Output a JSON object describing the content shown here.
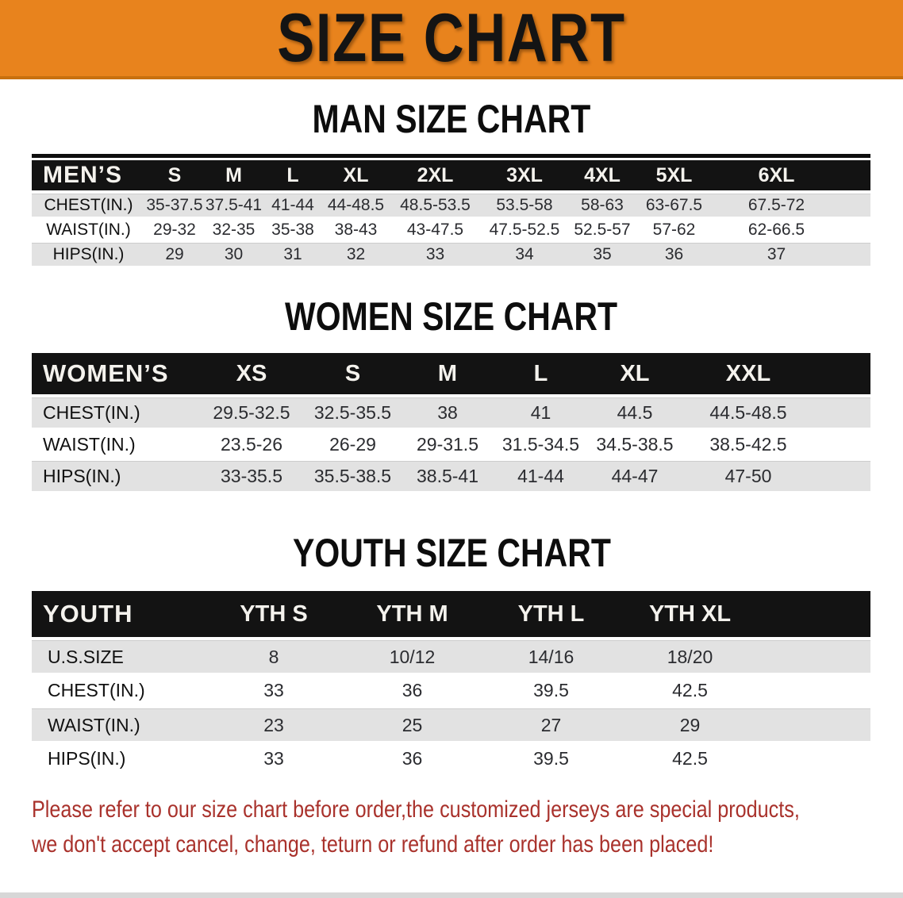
{
  "banner": {
    "title": "SIZE CHART"
  },
  "colors": {
    "banner_orange": "#E8831D",
    "header_black": "#131313",
    "row_gray": "#E2E2E2",
    "note_red": "#A9322C",
    "text_dark": "#2B2C30"
  },
  "man": {
    "heading": "MAN SIZE CHART",
    "table": {
      "header_label": "MEN’S",
      "columns": [
        "S",
        "M",
        "L",
        "XL",
        "2XL",
        "3XL",
        "4XL",
        "5XL",
        "6XL"
      ],
      "rows": [
        {
          "label": "CHEST(IN.)",
          "values": [
            "35-37.5",
            "37.5-41",
            "41-44",
            "44-48.5",
            "48.5-53.5",
            "53.5-58",
            "58-63",
            "63-67.5",
            "67.5-72"
          ]
        },
        {
          "label": "WAIST(IN.)",
          "values": [
            "29-32",
            "32-35",
            "35-38",
            "38-43",
            "43-47.5",
            "47.5-52.5",
            "52.5-57",
            "57-62",
            "62-66.5"
          ]
        },
        {
          "label": "HIPS(IN.)",
          "values": [
            "29",
            "30",
            "31",
            "32",
            "33",
            "34",
            "35",
            "36",
            "37"
          ]
        }
      ]
    }
  },
  "women": {
    "heading": "WOMEN SIZE CHART",
    "table": {
      "header_label": "WOMEN’S",
      "columns": [
        "XS",
        "S",
        "M",
        "L",
        "XL",
        "XXL"
      ],
      "rows": [
        {
          "label": "CHEST(IN.)",
          "values": [
            "29.5-32.5",
            "32.5-35.5",
            "38",
            "41",
            "44.5",
            "44.5-48.5"
          ]
        },
        {
          "label": "WAIST(IN.)",
          "values": [
            "23.5-26",
            "26-29",
            "29-31.5",
            "31.5-34.5",
            "34.5-38.5",
            "38.5-42.5"
          ]
        },
        {
          "label": "HIPS(IN.)",
          "values": [
            "33-35.5",
            "35.5-38.5",
            "38.5-41",
            "41-44",
            "44-47",
            "47-50"
          ]
        }
      ]
    }
  },
  "youth": {
    "heading": "YOUTH SIZE CHART",
    "table": {
      "header_label": "YOUTH",
      "columns": [
        "YTH S",
        "YTH M",
        "YTH L",
        "YTH XL"
      ],
      "rows": [
        {
          "label": "U.S.SIZE",
          "values": [
            "8",
            "10/12",
            "14/16",
            "18/20"
          ]
        },
        {
          "label": "CHEST(IN.)",
          "values": [
            "33",
            "36",
            "39.5",
            "42.5"
          ]
        },
        {
          "label": "WAIST(IN.)",
          "values": [
            "23",
            "25",
            "27",
            "29"
          ]
        },
        {
          "label": "HIPS(IN.)",
          "values": [
            "33",
            "36",
            "39.5",
            "42.5"
          ]
        }
      ]
    }
  },
  "note": {
    "line1": "Please refer to our size chart before order,the customized jerseys are special products,",
    "line2": "we don't accept cancel, change, teturn or refund after order has been placed!"
  }
}
